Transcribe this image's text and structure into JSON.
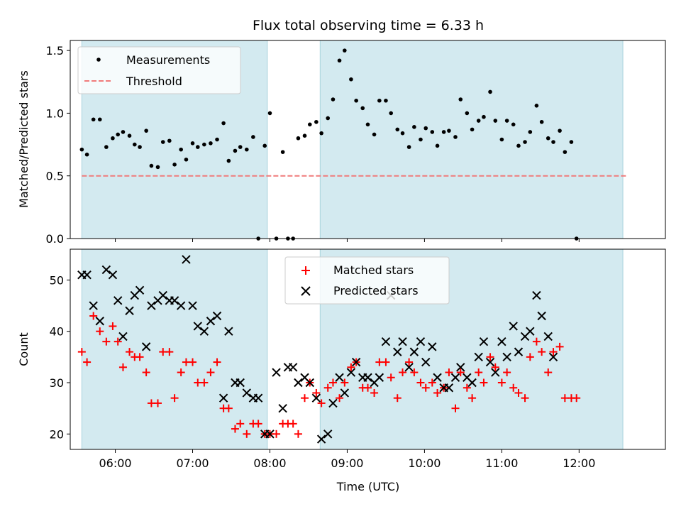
{
  "chart_data": [
    {
      "panel": "top",
      "type": "scatter",
      "title": "Flux total observing time = 6.33 h",
      "ylabel": "Matched/Predicted stars",
      "xlabel": "",
      "ylim": [
        0,
        1.58
      ],
      "xlim": [
        "05:25",
        "13:07"
      ],
      "yticks": [
        0.0,
        0.5,
        1.0,
        1.5
      ],
      "ytick_labels": [
        "0.0",
        "0.5",
        "1.0",
        "1.5"
      ],
      "shaded_intervals": [
        [
          "05:34",
          "07:58"
        ],
        [
          "08:39",
          "12:34"
        ]
      ],
      "shade_color": "#d3eaf0",
      "legend_position": "upper-left",
      "threshold": {
        "name": "Threshold",
        "value": 0.5,
        "x_range": [
          "05:34",
          "12:37"
        ],
        "color": "#f07b7b",
        "style": "dashed"
      },
      "series": [
        {
          "name": "Measurements",
          "marker": "dot",
          "color": "#000000",
          "points": [
            [
              "05:34",
              0.71
            ],
            [
              "05:38",
              0.67
            ],
            [
              "05:43",
              0.95
            ],
            [
              "05:48",
              0.95
            ],
            [
              "05:53",
              0.73
            ],
            [
              "05:58",
              0.8
            ],
            [
              "06:02",
              0.83
            ],
            [
              "06:06",
              0.85
            ],
            [
              "06:11",
              0.82
            ],
            [
              "06:15",
              0.75
            ],
            [
              "06:19",
              0.73
            ],
            [
              "06:24",
              0.86
            ],
            [
              "06:28",
              0.58
            ],
            [
              "06:33",
              0.57
            ],
            [
              "06:37",
              0.77
            ],
            [
              "06:42",
              0.78
            ],
            [
              "06:46",
              0.59
            ],
            [
              "06:51",
              0.71
            ],
            [
              "06:55",
              0.63
            ],
            [
              "07:00",
              0.76
            ],
            [
              "07:04",
              0.73
            ],
            [
              "07:09",
              0.75
            ],
            [
              "07:14",
              0.76
            ],
            [
              "07:19",
              0.79
            ],
            [
              "07:24",
              0.92
            ],
            [
              "07:28",
              0.62
            ],
            [
              "07:33",
              0.7
            ],
            [
              "07:37",
              0.73
            ],
            [
              "07:42",
              0.71
            ],
            [
              "07:47",
              0.81
            ],
            [
              "07:51",
              0.0
            ],
            [
              "07:56",
              0.74
            ],
            [
              "08:00",
              1.0
            ],
            [
              "08:05",
              0.0
            ],
            [
              "08:10",
              0.69
            ],
            [
              "08:14",
              0.0
            ],
            [
              "08:18",
              0.0
            ],
            [
              "08:22",
              0.8
            ],
            [
              "08:27",
              0.82
            ],
            [
              "08:31",
              0.91
            ],
            [
              "08:36",
              0.93
            ],
            [
              "08:40",
              0.84
            ],
            [
              "08:45",
              0.96
            ],
            [
              "08:49",
              1.11
            ],
            [
              "08:54",
              1.42
            ],
            [
              "08:58",
              1.5
            ],
            [
              "09:03",
              1.27
            ],
            [
              "09:07",
              1.1
            ],
            [
              "09:12",
              1.04
            ],
            [
              "09:16",
              0.91
            ],
            [
              "09:21",
              0.83
            ],
            [
              "09:25",
              1.1
            ],
            [
              "09:30",
              1.1
            ],
            [
              "09:34",
              1.0
            ],
            [
              "09:39",
              0.87
            ],
            [
              "09:43",
              0.84
            ],
            [
              "09:48",
              0.73
            ],
            [
              "09:52",
              0.89
            ],
            [
              "09:57",
              0.79
            ],
            [
              "10:01",
              0.88
            ],
            [
              "10:06",
              0.85
            ],
            [
              "10:10",
              0.74
            ],
            [
              "10:15",
              0.85
            ],
            [
              "10:19",
              0.86
            ],
            [
              "10:24",
              0.81
            ],
            [
              "10:28",
              1.11
            ],
            [
              "10:33",
              1.0
            ],
            [
              "10:37",
              0.87
            ],
            [
              "10:42",
              0.94
            ],
            [
              "10:46",
              0.97
            ],
            [
              "10:51",
              1.17
            ],
            [
              "10:55",
              0.94
            ],
            [
              "11:00",
              0.79
            ],
            [
              "11:04",
              0.94
            ],
            [
              "11:09",
              0.91
            ],
            [
              "11:13",
              0.74
            ],
            [
              "11:18",
              0.77
            ],
            [
              "11:22",
              0.85
            ],
            [
              "11:27",
              1.06
            ],
            [
              "11:31",
              0.93
            ],
            [
              "11:36",
              0.8
            ],
            [
              "11:40",
              0.77
            ],
            [
              "11:45",
              0.86
            ],
            [
              "11:49",
              0.69
            ],
            [
              "11:54",
              0.77
            ],
            [
              "11:58",
              0.0
            ]
          ]
        }
      ]
    },
    {
      "panel": "bottom",
      "type": "scatter",
      "title": "",
      "ylabel": "Count",
      "xlabel": "Time (UTC)",
      "ylim": [
        17,
        56
      ],
      "xlim": [
        "05:25",
        "13:07"
      ],
      "yticks": [
        20,
        30,
        40,
        50
      ],
      "ytick_labels": [
        "20",
        "30",
        "40",
        "50"
      ],
      "xticks": [
        "06:00",
        "07:00",
        "08:00",
        "09:00",
        "10:00",
        "11:00",
        "12:00"
      ],
      "shaded_intervals": [
        [
          "05:34",
          "07:58"
        ],
        [
          "08:39",
          "12:34"
        ]
      ],
      "shade_color": "#d3eaf0",
      "legend_position": "upper-center",
      "series": [
        {
          "name": "Matched stars",
          "marker": "plus",
          "color": "#ff0000",
          "points": [
            [
              "05:34",
              36
            ],
            [
              "05:38",
              34
            ],
            [
              "05:43",
              43
            ],
            [
              "05:48",
              40
            ],
            [
              "05:53",
              38
            ],
            [
              "05:58",
              41
            ],
            [
              "06:02",
              38
            ],
            [
              "06:06",
              33
            ],
            [
              "06:11",
              36
            ],
            [
              "06:15",
              35
            ],
            [
              "06:19",
              35
            ],
            [
              "06:24",
              32
            ],
            [
              "06:28",
              26
            ],
            [
              "06:33",
              26
            ],
            [
              "06:37",
              36
            ],
            [
              "06:42",
              36
            ],
            [
              "06:46",
              27
            ],
            [
              "06:51",
              32
            ],
            [
              "06:55",
              34
            ],
            [
              "07:00",
              34
            ],
            [
              "07:04",
              30
            ],
            [
              "07:09",
              30
            ],
            [
              "07:14",
              32
            ],
            [
              "07:19",
              34
            ],
            [
              "07:24",
              25
            ],
            [
              "07:28",
              25
            ],
            [
              "07:33",
              21
            ],
            [
              "07:37",
              22
            ],
            [
              "07:42",
              20
            ],
            [
              "07:47",
              22
            ],
            [
              "07:51",
              22
            ],
            [
              "07:56",
              20
            ],
            [
              "08:00",
              20
            ],
            [
              "08:05",
              20
            ],
            [
              "08:10",
              22
            ],
            [
              "08:14",
              22
            ],
            [
              "08:18",
              22
            ],
            [
              "08:22",
              20
            ],
            [
              "08:27",
              27
            ],
            [
              "08:31",
              30
            ],
            [
              "08:36",
              28
            ],
            [
              "08:40",
              26
            ],
            [
              "08:45",
              29
            ],
            [
              "08:49",
              30
            ],
            [
              "08:54",
              27
            ],
            [
              "08:58",
              30
            ],
            [
              "09:03",
              33
            ],
            [
              "09:07",
              34
            ],
            [
              "09:12",
              29
            ],
            [
              "09:16",
              29
            ],
            [
              "09:21",
              28
            ],
            [
              "09:25",
              34
            ],
            [
              "09:30",
              34
            ],
            [
              "09:34",
              31
            ],
            [
              "09:39",
              27
            ],
            [
              "09:43",
              32
            ],
            [
              "09:48",
              34
            ],
            [
              "09:52",
              32
            ],
            [
              "09:57",
              30
            ],
            [
              "10:01",
              29
            ],
            [
              "10:06",
              30
            ],
            [
              "10:10",
              28
            ],
            [
              "10:15",
              29
            ],
            [
              "10:19",
              32
            ],
            [
              "10:24",
              25
            ],
            [
              "10:28",
              32
            ],
            [
              "10:33",
              29
            ],
            [
              "10:37",
              27
            ],
            [
              "10:42",
              32
            ],
            [
              "10:46",
              30
            ],
            [
              "10:51",
              35
            ],
            [
              "10:55",
              33
            ],
            [
              "11:00",
              30
            ],
            [
              "11:04",
              32
            ],
            [
              "11:09",
              29
            ],
            [
              "11:13",
              28
            ],
            [
              "11:18",
              27
            ],
            [
              "11:22",
              35
            ],
            [
              "11:27",
              38
            ],
            [
              "11:31",
              36
            ],
            [
              "11:36",
              32
            ],
            [
              "11:40",
              36
            ],
            [
              "11:45",
              37
            ],
            [
              "11:49",
              27
            ],
            [
              "11:54",
              27
            ],
            [
              "11:58",
              27
            ]
          ]
        },
        {
          "name": "Predicted stars",
          "marker": "x",
          "color": "#000000",
          "points": [
            [
              "05:34",
              51
            ],
            [
              "05:38",
              51
            ],
            [
              "05:43",
              45
            ],
            [
              "05:48",
              42
            ],
            [
              "05:53",
              52
            ],
            [
              "05:58",
              51
            ],
            [
              "06:02",
              46
            ],
            [
              "06:06",
              39
            ],
            [
              "06:11",
              44
            ],
            [
              "06:15",
              47
            ],
            [
              "06:19",
              48
            ],
            [
              "06:24",
              37
            ],
            [
              "06:28",
              45
            ],
            [
              "06:33",
              46
            ],
            [
              "06:37",
              47
            ],
            [
              "06:42",
              46
            ],
            [
              "06:46",
              46
            ],
            [
              "06:51",
              45
            ],
            [
              "06:55",
              54
            ],
            [
              "07:00",
              45
            ],
            [
              "07:04",
              41
            ],
            [
              "07:09",
              40
            ],
            [
              "07:14",
              42
            ],
            [
              "07:19",
              43
            ],
            [
              "07:24",
              27
            ],
            [
              "07:28",
              40
            ],
            [
              "07:33",
              30
            ],
            [
              "07:37",
              30
            ],
            [
              "07:42",
              28
            ],
            [
              "07:47",
              27
            ],
            [
              "07:51",
              27
            ],
            [
              "07:56",
              20
            ],
            [
              "08:00",
              20
            ],
            [
              "08:05",
              32
            ],
            [
              "08:10",
              25
            ],
            [
              "08:14",
              33
            ],
            [
              "08:18",
              33
            ],
            [
              "08:22",
              30
            ],
            [
              "08:27",
              31
            ],
            [
              "08:31",
              30
            ],
            [
              "08:36",
              27
            ],
            [
              "08:40",
              19
            ],
            [
              "08:45",
              20
            ],
            [
              "08:49",
              26
            ],
            [
              "08:54",
              31
            ],
            [
              "08:58",
              28
            ],
            [
              "09:03",
              32
            ],
            [
              "09:07",
              34
            ],
            [
              "09:12",
              31
            ],
            [
              "09:16",
              31
            ],
            [
              "09:21",
              30
            ],
            [
              "09:25",
              31
            ],
            [
              "09:30",
              38
            ],
            [
              "09:34",
              47
            ],
            [
              "09:39",
              36
            ],
            [
              "09:43",
              38
            ],
            [
              "09:48",
              33
            ],
            [
              "09:52",
              36
            ],
            [
              "09:57",
              38
            ],
            [
              "10:01",
              34
            ],
            [
              "10:06",
              37
            ],
            [
              "10:10",
              31
            ],
            [
              "10:15",
              29
            ],
            [
              "10:19",
              29
            ],
            [
              "10:24",
              31
            ],
            [
              "10:28",
              33
            ],
            [
              "10:33",
              31
            ],
            [
              "10:37",
              30
            ],
            [
              "10:42",
              35
            ],
            [
              "10:46",
              38
            ],
            [
              "10:51",
              34
            ],
            [
              "10:55",
              32
            ],
            [
              "11:00",
              38
            ],
            [
              "11:04",
              35
            ],
            [
              "11:09",
              41
            ],
            [
              "11:13",
              36
            ],
            [
              "11:18",
              39
            ],
            [
              "11:22",
              40
            ],
            [
              "11:27",
              47
            ],
            [
              "11:31",
              43
            ],
            [
              "11:36",
              39
            ],
            [
              "11:40",
              35
            ]
          ]
        }
      ]
    }
  ]
}
